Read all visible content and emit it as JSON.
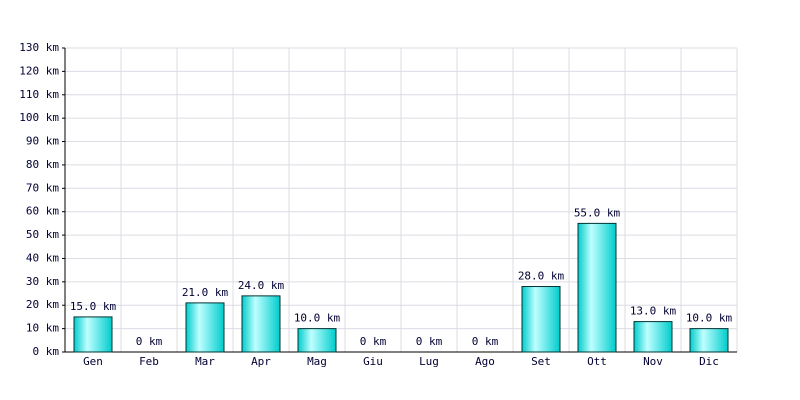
{
  "chart_data": {
    "type": "bar",
    "categories": [
      "Gen",
      "Feb",
      "Mar",
      "Apr",
      "Mag",
      "Giu",
      "Lug",
      "Ago",
      "Set",
      "Ott",
      "Nov",
      "Dic"
    ],
    "values": [
      15,
      0,
      21,
      24,
      10,
      0,
      0,
      0,
      28,
      55,
      13,
      10
    ],
    "value_labels": [
      "15.0 km",
      "0 km",
      "21.0 km",
      "24.0 km",
      "10.0 km",
      "0 km",
      "0 km",
      "0 km",
      "28.0 km",
      "55.0 km",
      "13.0 km",
      "10.0 km"
    ],
    "color": "#00cccc",
    "ylim": [
      0,
      130
    ],
    "yticks": [
      {
        "value": 0,
        "label": "0 km"
      },
      {
        "value": 10,
        "label": "10 km"
      },
      {
        "value": 20,
        "label": "20 km"
      },
      {
        "value": 30,
        "label": "30 km"
      },
      {
        "value": 40,
        "label": "40 km"
      },
      {
        "value": 50,
        "label": "50 km"
      },
      {
        "value": 60,
        "label": "60 km"
      },
      {
        "value": 70,
        "label": "70 km"
      },
      {
        "value": 80,
        "label": "80 km"
      },
      {
        "value": 90,
        "label": "90 km"
      },
      {
        "value": 100,
        "label": "100 km"
      },
      {
        "value": 110,
        "label": "110 km"
      },
      {
        "value": 120,
        "label": "120 km"
      },
      {
        "value": 130,
        "label": "130 km"
      }
    ],
    "grid": true
  }
}
